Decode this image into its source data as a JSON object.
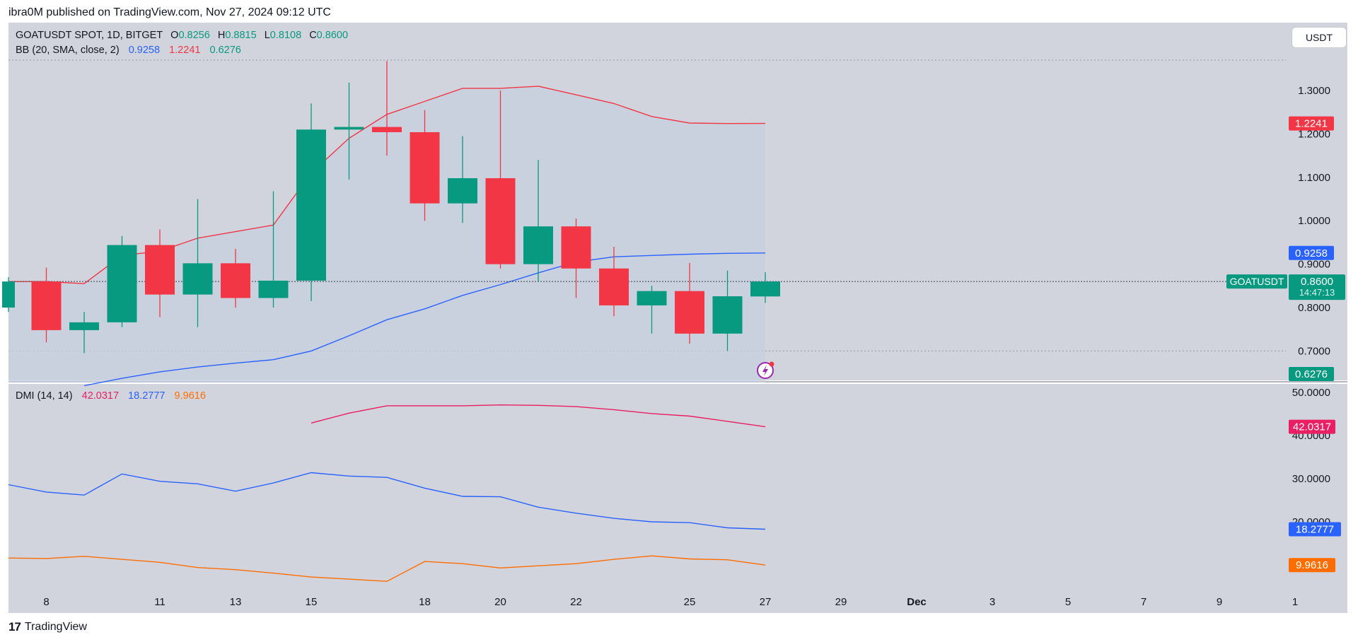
{
  "publisher": "ibra0M published on TradingView.com, Nov 27, 2024 09:12 UTC",
  "footer_logo": "TradingView",
  "footer_mark": "17",
  "currency_button": "USDT",
  "main_legend": {
    "symbol": "GOATUSDT SPOT, 1D, BITGET",
    "o_label": "O",
    "o_value": "0.8256",
    "h_label": "H",
    "h_value": "0.8815",
    "l_label": "L",
    "l_value": "0.8108",
    "c_label": "C",
    "c_value": "0.8600"
  },
  "bb_legend": {
    "label": "BB (20, SMA, close, 2)",
    "basis": "0.9258",
    "upper": "1.2241",
    "lower": "0.6276"
  },
  "dmi_legend": {
    "label": "DMI (14, 14)",
    "adx": "42.0317",
    "plus_di": "18.2777",
    "minus_di": "9.9616"
  },
  "colors": {
    "up": "#089981",
    "down": "#f23645",
    "bb_basis": "#2962ff",
    "bb_upper": "#f23645",
    "adx": "#e91e63",
    "plus_di": "#2962ff",
    "minus_di": "#ff6d00",
    "background": "#d1d4dc"
  },
  "chart_data": [
    {
      "type": "candlestick",
      "title": "GOATUSDT SPOT, 1D, BITGET",
      "x_tick_labels": [
        "8",
        "11",
        "13",
        "15",
        "18",
        "20",
        "22",
        "25",
        "27",
        "29",
        "Dec",
        "3",
        "5",
        "7",
        "9",
        "1"
      ],
      "y_tick_labels": [
        "1.3000",
        "1.2000",
        "1.1000",
        "1.0000",
        "0.9000",
        "0.8000",
        "0.7000"
      ],
      "ylim": [
        0.63,
        1.37
      ],
      "candles": [
        {
          "date": "Nov 7",
          "o": 0.8,
          "h": 0.87,
          "l": 0.79,
          "c": 0.86
        },
        {
          "date": "Nov 8",
          "o": 0.86,
          "h": 0.892,
          "l": 0.72,
          "c": 0.748
        },
        {
          "date": "Nov 9",
          "o": 0.748,
          "h": 0.79,
          "l": 0.695,
          "c": 0.766
        },
        {
          "date": "Nov 10",
          "o": 0.766,
          "h": 0.965,
          "l": 0.755,
          "c": 0.944
        },
        {
          "date": "Nov 11",
          "o": 0.944,
          "h": 0.98,
          "l": 0.778,
          "c": 0.83
        },
        {
          "date": "Nov 12",
          "o": 0.83,
          "h": 1.05,
          "l": 0.755,
          "c": 0.902
        },
        {
          "date": "Nov 13",
          "o": 0.902,
          "h": 0.935,
          "l": 0.8,
          "c": 0.822
        },
        {
          "date": "Nov 14",
          "o": 0.822,
          "h": 1.068,
          "l": 0.8,
          "c": 0.862
        },
        {
          "date": "Nov 15",
          "o": 0.862,
          "h": 1.27,
          "l": 0.815,
          "c": 1.21
        },
        {
          "date": "Nov 16",
          "o": 1.21,
          "h": 1.318,
          "l": 1.095,
          "c": 1.216
        },
        {
          "date": "Nov 17",
          "o": 1.216,
          "h": 1.368,
          "l": 1.15,
          "c": 1.204
        },
        {
          "date": "Nov 18",
          "o": 1.204,
          "h": 1.255,
          "l": 1.0,
          "c": 1.04
        },
        {
          "date": "Nov 19",
          "o": 1.04,
          "h": 1.195,
          "l": 0.995,
          "c": 1.098
        },
        {
          "date": "Nov 20",
          "o": 1.098,
          "h": 1.3,
          "l": 0.89,
          "c": 0.9
        },
        {
          "date": "Nov 21",
          "o": 0.9,
          "h": 1.14,
          "l": 0.86,
          "c": 0.987
        },
        {
          "date": "Nov 22",
          "o": 0.987,
          "h": 1.005,
          "l": 0.822,
          "c": 0.89
        },
        {
          "date": "Nov 23",
          "o": 0.89,
          "h": 0.94,
          "l": 0.78,
          "c": 0.805
        },
        {
          "date": "Nov 24",
          "o": 0.805,
          "h": 0.85,
          "l": 0.74,
          "c": 0.838
        },
        {
          "date": "Nov 25",
          "o": 0.838,
          "h": 0.903,
          "l": 0.717,
          "c": 0.74
        },
        {
          "date": "Nov 26",
          "o": 0.74,
          "h": 0.885,
          "l": 0.7,
          "c": 0.826
        },
        {
          "date": "Nov 27",
          "o": 0.8256,
          "h": 0.8815,
          "l": 0.8108,
          "c": 0.86
        }
      ],
      "bb_upper": [
        0.86,
        0.86,
        0.855,
        0.92,
        0.93,
        0.96,
        0.975,
        0.99,
        1.11,
        1.19,
        1.245,
        1.275,
        1.305,
        1.305,
        1.31,
        1.29,
        1.27,
        1.24,
        1.225,
        1.224,
        1.2241
      ],
      "bb_basis": [
        null,
        null,
        0.62,
        0.637,
        0.652,
        0.663,
        0.672,
        0.68,
        0.7,
        0.735,
        0.772,
        0.797,
        0.828,
        0.853,
        0.88,
        0.905,
        0.917,
        0.92,
        0.923,
        0.925,
        0.9258
      ],
      "bb_lower_value": 0.6276,
      "last_price": 0.86,
      "price_labels": {
        "upper": "1.2241",
        "basis": "0.9258",
        "lower": "0.6276",
        "last": "0.8600",
        "last_symbol": "GOATUSDT",
        "countdown": "14:47:13"
      }
    },
    {
      "type": "line",
      "title": "DMI (14, 14)",
      "y_tick_labels": [
        "50.0000",
        "40.0000",
        "30.0000",
        "20.0000"
      ],
      "ylim": [
        4,
        52.8
      ],
      "series": [
        {
          "name": "ADX",
          "values": [
            null,
            null,
            null,
            null,
            null,
            null,
            null,
            null,
            42.9,
            45.2,
            46.9,
            46.9,
            46.9,
            47.1,
            47.0,
            46.7,
            46.0,
            45.1,
            44.5,
            43.3,
            42.0317
          ]
        },
        {
          "name": "+DI",
          "values": [
            28.6,
            26.9,
            26.2,
            31.1,
            29.4,
            28.8,
            27.1,
            29.0,
            31.4,
            30.6,
            30.3,
            27.8,
            25.9,
            25.8,
            23.4,
            22.0,
            20.8,
            20.0,
            19.8,
            18.6,
            18.2777
          ]
        },
        {
          "name": "-DI",
          "values": [
            11.6,
            11.5,
            12.0,
            11.3,
            10.6,
            9.4,
            8.9,
            8.1,
            7.2,
            6.7,
            6.2,
            10.8,
            10.3,
            9.3,
            9.8,
            10.3,
            11.3,
            12.1,
            11.4,
            11.2,
            9.9616
          ]
        }
      ],
      "value_labels": {
        "adx": "42.0317",
        "plus_di": "18.2777",
        "minus_di": "9.9616"
      }
    }
  ]
}
